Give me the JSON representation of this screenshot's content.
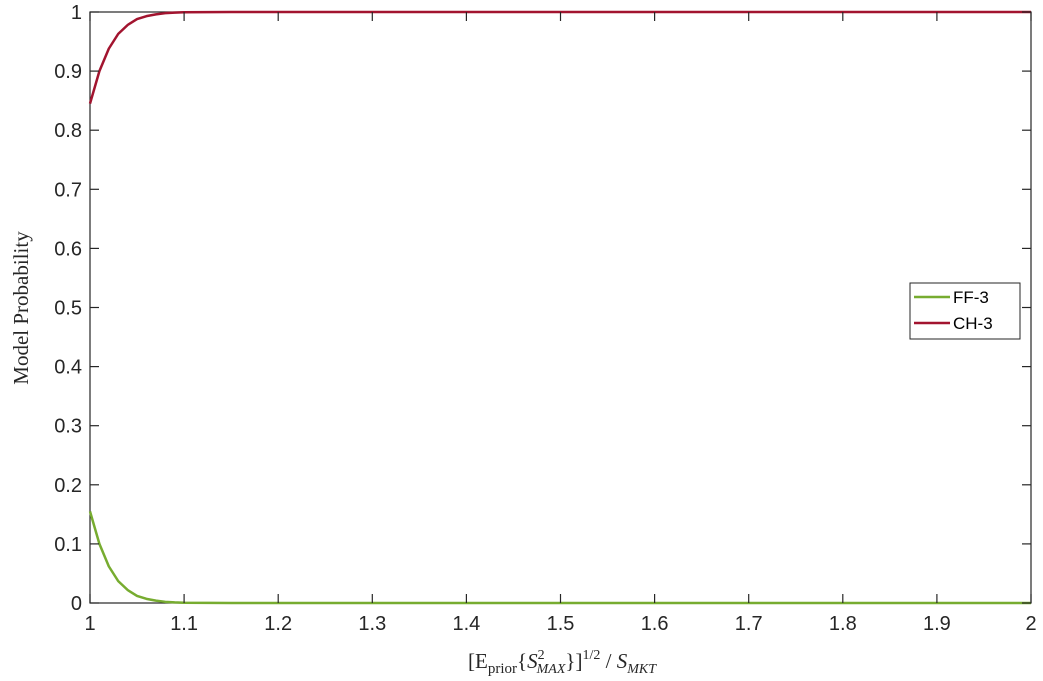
{
  "chart_data": {
    "type": "line",
    "xlabel_parts": {
      "bracket_open": "[E",
      "sub_prior": "prior",
      "brace_open": "{",
      "s": "S",
      "sup2": "2",
      "sub_max": "MAX",
      "brace_close": "}]",
      "sup_half": "1/2",
      "slash": " / ",
      "s2": "S",
      "sub_mkt": "MKT"
    },
    "ylabel": "Model Probability",
    "xlim": [
      1,
      2
    ],
    "ylim": [
      0,
      1
    ],
    "xticks": [
      "1",
      "1.1",
      "1.2",
      "1.3",
      "1.4",
      "1.5",
      "1.6",
      "1.7",
      "1.8",
      "1.9",
      "2"
    ],
    "yticks": [
      "0",
      "0.1",
      "0.2",
      "0.3",
      "0.4",
      "0.5",
      "0.6",
      "0.7",
      "0.8",
      "0.9",
      "1"
    ],
    "grid": false,
    "legend_position": "right",
    "series": [
      {
        "name": "FF-3",
        "color": "#77AC30",
        "x": [
          1.0,
          1.01,
          1.02,
          1.03,
          1.04,
          1.05,
          1.06,
          1.07,
          1.08,
          1.09,
          1.1,
          1.15,
          1.2,
          1.5,
          2.0
        ],
        "y": [
          0.155,
          0.1,
          0.062,
          0.037,
          0.022,
          0.012,
          0.007,
          0.004,
          0.002,
          0.001,
          0.0005,
          0.0,
          0.0,
          0.0,
          0.0
        ]
      },
      {
        "name": "CH-3",
        "color": "#A2142F",
        "x": [
          1.0,
          1.01,
          1.02,
          1.03,
          1.04,
          1.05,
          1.06,
          1.07,
          1.08,
          1.09,
          1.1,
          1.15,
          1.2,
          1.5,
          2.0
        ],
        "y": [
          0.845,
          0.9,
          0.938,
          0.963,
          0.978,
          0.988,
          0.993,
          0.996,
          0.998,
          0.999,
          0.9995,
          1.0,
          1.0,
          1.0,
          1.0
        ]
      }
    ]
  }
}
